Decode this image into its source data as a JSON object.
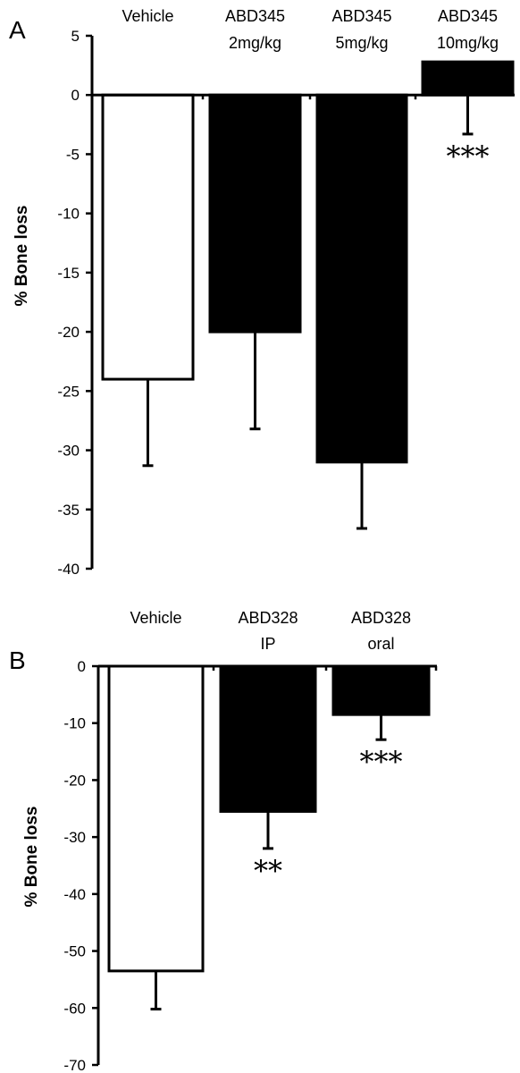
{
  "chart_data": [
    {
      "type": "bar",
      "panel_label": "A",
      "ylabel": "% Bone loss",
      "ylim": [
        -40,
        5
      ],
      "yticks": [
        5,
        0,
        -5,
        -10,
        -15,
        -20,
        -25,
        -30,
        -35,
        -40
      ],
      "categories": [
        [
          "Vehicle"
        ],
        [
          "ABD345",
          "2mg/kg"
        ],
        [
          "ABD345",
          "5mg/kg"
        ],
        [
          "ABD345",
          "10mg/kg"
        ]
      ],
      "values": [
        -24,
        -20,
        -31,
        2.8
      ],
      "errors": [
        7.3,
        8.2,
        5.6,
        6.1
      ],
      "fills": [
        "#ffffff",
        "#000000",
        "#000000",
        "#000000"
      ],
      "significance": [
        "",
        "",
        "",
        "***"
      ],
      "grid": false
    },
    {
      "type": "bar",
      "panel_label": "B",
      "ylabel": "% Bone loss",
      "ylim": [
        -70,
        0
      ],
      "yticks": [
        0,
        -10,
        -20,
        -30,
        -40,
        -50,
        -60,
        -70
      ],
      "categories": [
        [
          "Vehicle"
        ],
        [
          "ABD328",
          "IP"
        ],
        [
          "ABD328",
          "oral"
        ]
      ],
      "values": [
        -53.5,
        -25.5,
        -8.5
      ],
      "errors": [
        6.7,
        6.5,
        4.4
      ],
      "fills": [
        "#ffffff",
        "#000000",
        "#000000"
      ],
      "significance": [
        "",
        "**",
        "***"
      ],
      "grid": false
    }
  ]
}
